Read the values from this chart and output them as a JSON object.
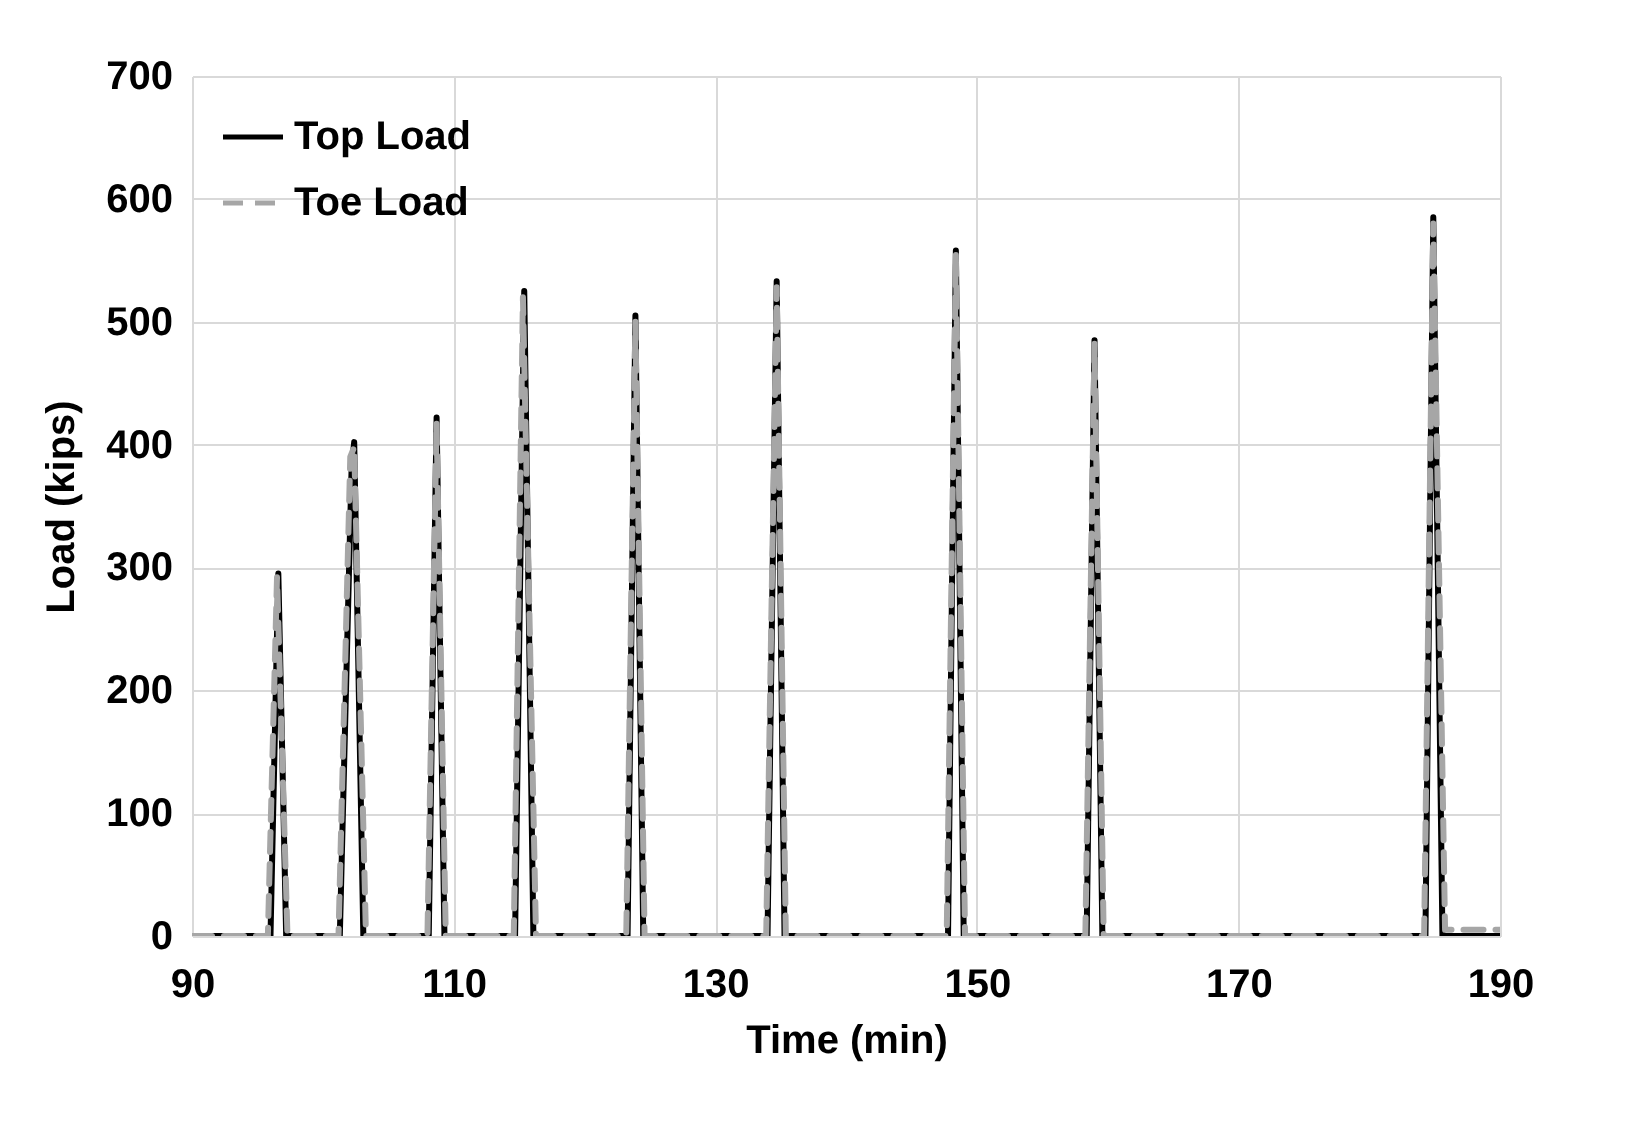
{
  "chart_data": {
    "type": "line",
    "xlabel": "Time (min)",
    "ylabel": "Load (kips)",
    "xlim": [
      90,
      190
    ],
    "xticks": [
      90,
      110,
      130,
      150,
      170,
      190
    ],
    "ylim": [
      0,
      700
    ],
    "yticks": [
      0,
      100,
      200,
      300,
      400,
      500,
      600,
      700
    ],
    "grid": true,
    "legend": "top left",
    "marker": "none",
    "series": [
      {
        "name": "Top Load",
        "color": "#000000",
        "line_style": "solid",
        "x": [
          90,
          96.0,
          96.6,
          97.2,
          101.3,
          102.2,
          102.4,
          103.1,
          108.1,
          108.7,
          109.3,
          114.7,
          115.4,
          116.1,
          123.3,
          123.9,
          124.5,
          134.0,
          134.7,
          135.3,
          147.8,
          148.4,
          149.0,
          158.4,
          159.0,
          159.6,
          184.3,
          184.9,
          185.6,
          190
        ],
        "values": [
          0,
          0,
          295,
          0,
          0,
          380,
          402,
          0,
          0,
          422,
          0,
          0,
          525,
          0,
          0,
          505,
          0,
          0,
          533,
          0,
          0,
          558,
          0,
          0,
          485,
          0,
          0,
          585,
          0,
          0
        ]
      },
      {
        "name": "Toe Load",
        "color": "#a6a6a6",
        "line_style": "dashed",
        "x": [
          90,
          95.8,
          96.5,
          97.3,
          101.2,
          102.1,
          102.4,
          103.3,
          108.0,
          108.7,
          109.4,
          114.6,
          115.3,
          116.3,
          123.2,
          123.9,
          124.6,
          133.9,
          134.7,
          135.4,
          147.7,
          148.4,
          149.1,
          158.3,
          159.0,
          159.7,
          184.2,
          184.9,
          185.8,
          190
        ],
        "values": [
          0,
          0,
          292,
          0,
          0,
          390,
          398,
          0,
          0,
          418,
          0,
          0,
          520,
          0,
          0,
          500,
          0,
          0,
          528,
          0,
          0,
          555,
          0,
          0,
          482,
          0,
          0,
          580,
          5,
          5
        ]
      }
    ]
  }
}
